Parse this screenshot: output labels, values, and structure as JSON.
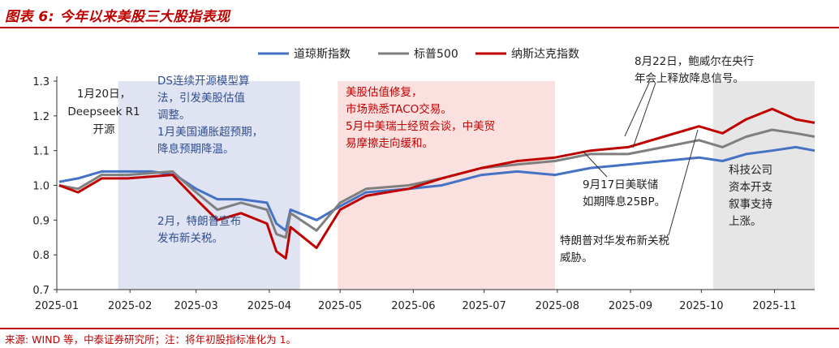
{
  "header": {
    "title": "图表 6: 今年以来美股三大股指表现"
  },
  "footer": {
    "source": "来源: WIND 等，中泰证券研究所；注：将年初股指标准化为 1。"
  },
  "colors": {
    "dow": "#4472c4",
    "sp500": "#7f7f7f",
    "nasdaq": "#c00000",
    "shade_blue": "#dfe3f2",
    "shade_red": "#fbe0e0",
    "shade_gray": "#e6e6e6"
  },
  "chart_data": {
    "type": "line",
    "x_ticks": [
      "2025-01",
      "2025-02",
      "2025-03",
      "2025-04",
      "2025-05",
      "2025-06",
      "2025-07",
      "2025-08",
      "2025-09",
      "2025-10",
      "2025-11"
    ],
    "y_ticks": [
      "1.3",
      "1.2",
      "1.1",
      "1.0",
      "0.9",
      "0.8",
      "0.7"
    ],
    "ylim": [
      0.7,
      1.3
    ],
    "xlim": [
      "2025-01-01",
      "2025-11-18"
    ],
    "legend": {
      "position": "top-center"
    },
    "series": [
      {
        "name": "道琼斯指数",
        "color": "#4472c4",
        "points": [
          [
            "2025-01-02",
            1.01
          ],
          [
            "2025-01-10",
            1.02
          ],
          [
            "2025-01-20",
            1.04
          ],
          [
            "2025-01-31",
            1.04
          ],
          [
            "2025-02-10",
            1.04
          ],
          [
            "2025-02-20",
            1.03
          ],
          [
            "2025-03-01",
            0.99
          ],
          [
            "2025-03-10",
            0.96
          ],
          [
            "2025-03-20",
            0.96
          ],
          [
            "2025-03-31",
            0.95
          ],
          [
            "2025-04-04",
            0.89
          ],
          [
            "2025-04-08",
            0.87
          ],
          [
            "2025-04-10",
            0.93
          ],
          [
            "2025-04-21",
            0.9
          ],
          [
            "2025-05-01",
            0.94
          ],
          [
            "2025-05-12",
            0.98
          ],
          [
            "2025-05-30",
            0.99
          ],
          [
            "2025-06-13",
            1.0
          ],
          [
            "2025-06-30",
            1.03
          ],
          [
            "2025-07-15",
            1.04
          ],
          [
            "2025-07-31",
            1.03
          ],
          [
            "2025-08-15",
            1.05
          ],
          [
            "2025-08-31",
            1.06
          ],
          [
            "2025-09-15",
            1.07
          ],
          [
            "2025-09-30",
            1.08
          ],
          [
            "2025-10-10",
            1.07
          ],
          [
            "2025-10-20",
            1.09
          ],
          [
            "2025-10-31",
            1.1
          ],
          [
            "2025-11-10",
            1.11
          ],
          [
            "2025-11-18",
            1.1
          ]
        ]
      },
      {
        "name": "标普500",
        "color": "#7f7f7f",
        "points": [
          [
            "2025-01-02",
            1.0
          ],
          [
            "2025-01-10",
            0.99
          ],
          [
            "2025-01-20",
            1.03
          ],
          [
            "2025-01-31",
            1.03
          ],
          [
            "2025-02-19",
            1.04
          ],
          [
            "2025-03-01",
            0.98
          ],
          [
            "2025-03-10",
            0.93
          ],
          [
            "2025-03-20",
            0.95
          ],
          [
            "2025-03-31",
            0.93
          ],
          [
            "2025-04-04",
            0.86
          ],
          [
            "2025-04-08",
            0.85
          ],
          [
            "2025-04-10",
            0.92
          ],
          [
            "2025-04-21",
            0.87
          ],
          [
            "2025-05-01",
            0.95
          ],
          [
            "2025-05-12",
            0.99
          ],
          [
            "2025-05-30",
            1.0
          ],
          [
            "2025-06-13",
            1.02
          ],
          [
            "2025-06-30",
            1.05
          ],
          [
            "2025-07-15",
            1.06
          ],
          [
            "2025-07-31",
            1.07
          ],
          [
            "2025-08-15",
            1.09
          ],
          [
            "2025-08-31",
            1.09
          ],
          [
            "2025-09-15",
            1.11
          ],
          [
            "2025-09-30",
            1.13
          ],
          [
            "2025-10-10",
            1.11
          ],
          [
            "2025-10-20",
            1.14
          ],
          [
            "2025-10-31",
            1.16
          ],
          [
            "2025-11-10",
            1.15
          ],
          [
            "2025-11-18",
            1.14
          ]
        ]
      },
      {
        "name": "纳斯达克指数",
        "color": "#c00000",
        "points": [
          [
            "2025-01-02",
            1.0
          ],
          [
            "2025-01-10",
            0.98
          ],
          [
            "2025-01-20",
            1.02
          ],
          [
            "2025-01-31",
            1.02
          ],
          [
            "2025-02-19",
            1.03
          ],
          [
            "2025-03-01",
            0.96
          ],
          [
            "2025-03-10",
            0.9
          ],
          [
            "2025-03-20",
            0.92
          ],
          [
            "2025-03-31",
            0.89
          ],
          [
            "2025-04-04",
            0.81
          ],
          [
            "2025-04-08",
            0.79
          ],
          [
            "2025-04-10",
            0.88
          ],
          [
            "2025-04-21",
            0.82
          ],
          [
            "2025-05-01",
            0.93
          ],
          [
            "2025-05-12",
            0.97
          ],
          [
            "2025-05-30",
            0.99
          ],
          [
            "2025-06-13",
            1.02
          ],
          [
            "2025-06-30",
            1.05
          ],
          [
            "2025-07-15",
            1.07
          ],
          [
            "2025-07-31",
            1.08
          ],
          [
            "2025-08-15",
            1.1
          ],
          [
            "2025-08-31",
            1.11
          ],
          [
            "2025-09-15",
            1.14
          ],
          [
            "2025-09-30",
            1.17
          ],
          [
            "2025-10-10",
            1.15
          ],
          [
            "2025-10-20",
            1.19
          ],
          [
            "2025-10-31",
            1.22
          ],
          [
            "2025-11-10",
            1.19
          ],
          [
            "2025-11-18",
            1.18
          ]
        ]
      }
    ],
    "shaded_periods": [
      {
        "from": "2025-01-27",
        "to": "2025-04-14",
        "color": "#dfe3f2"
      },
      {
        "from": "2025-04-30",
        "to": "2025-07-31",
        "color": "#fbe0e0"
      },
      {
        "from": "2025-10-06",
        "to": "2025-11-18",
        "color": "#e6e6e6"
      }
    ],
    "annotations": {
      "deepseek": [
        "1月20日，",
        "Deepseek R1",
        "开源"
      ],
      "ds_algo": [
        "DS连续开源模型算",
        "法，引发美股估值",
        "调整。",
        "1月美国通胀超预期，",
        "降息预期降温。"
      ],
      "tariff_feb": [
        "2月，特朗普宣布",
        "发布新关税。"
      ],
      "valuation": [
        "美股估值修复，",
        "市场熟悉TACO交易。",
        "5月中美瑞士经贸会谈，中美贸",
        "易摩擦走向缓和。"
      ],
      "powell": [
        "8月22日，鲍威尔在央行",
        "年会上释放降息信号。"
      ],
      "fed_cut": [
        "9月17日美联储",
        "如期降息25BP。"
      ],
      "tariff_china": [
        "特朗普对华发布新关税",
        "威胁。"
      ],
      "tech_capex": [
        "科技公司",
        "资本开支",
        "叙事支持",
        "上涨。"
      ]
    }
  }
}
